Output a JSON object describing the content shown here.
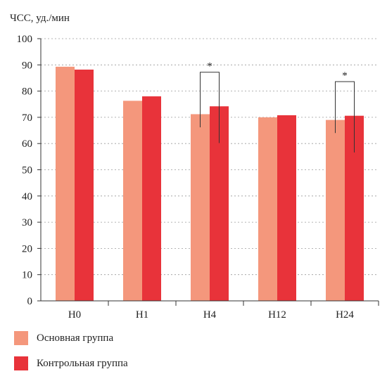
{
  "chart_data": {
    "type": "bar",
    "ylabel": "ЧСС, уд./мин",
    "ylim": [
      0,
      100
    ],
    "yticks": [
      0,
      10,
      20,
      30,
      40,
      50,
      60,
      70,
      80,
      90,
      100
    ],
    "categories": [
      "Н0",
      "Н1",
      "Н4",
      "Н12",
      "Н24"
    ],
    "grid": "horizontal dashed",
    "series": [
      {
        "name": "Основная группа",
        "color": "#f4977c",
        "values": [
          89.3,
          76.3,
          71.2,
          70.0,
          69.0
        ]
      },
      {
        "name": "Контрольная группа",
        "color": "#e8333a",
        "values": [
          88.2,
          78.0,
          74.2,
          70.8,
          70.6
        ]
      }
    ],
    "significance": [
      {
        "category": "Н4",
        "label": "*"
      },
      {
        "category": "Н24",
        "label": "*"
      }
    ]
  }
}
